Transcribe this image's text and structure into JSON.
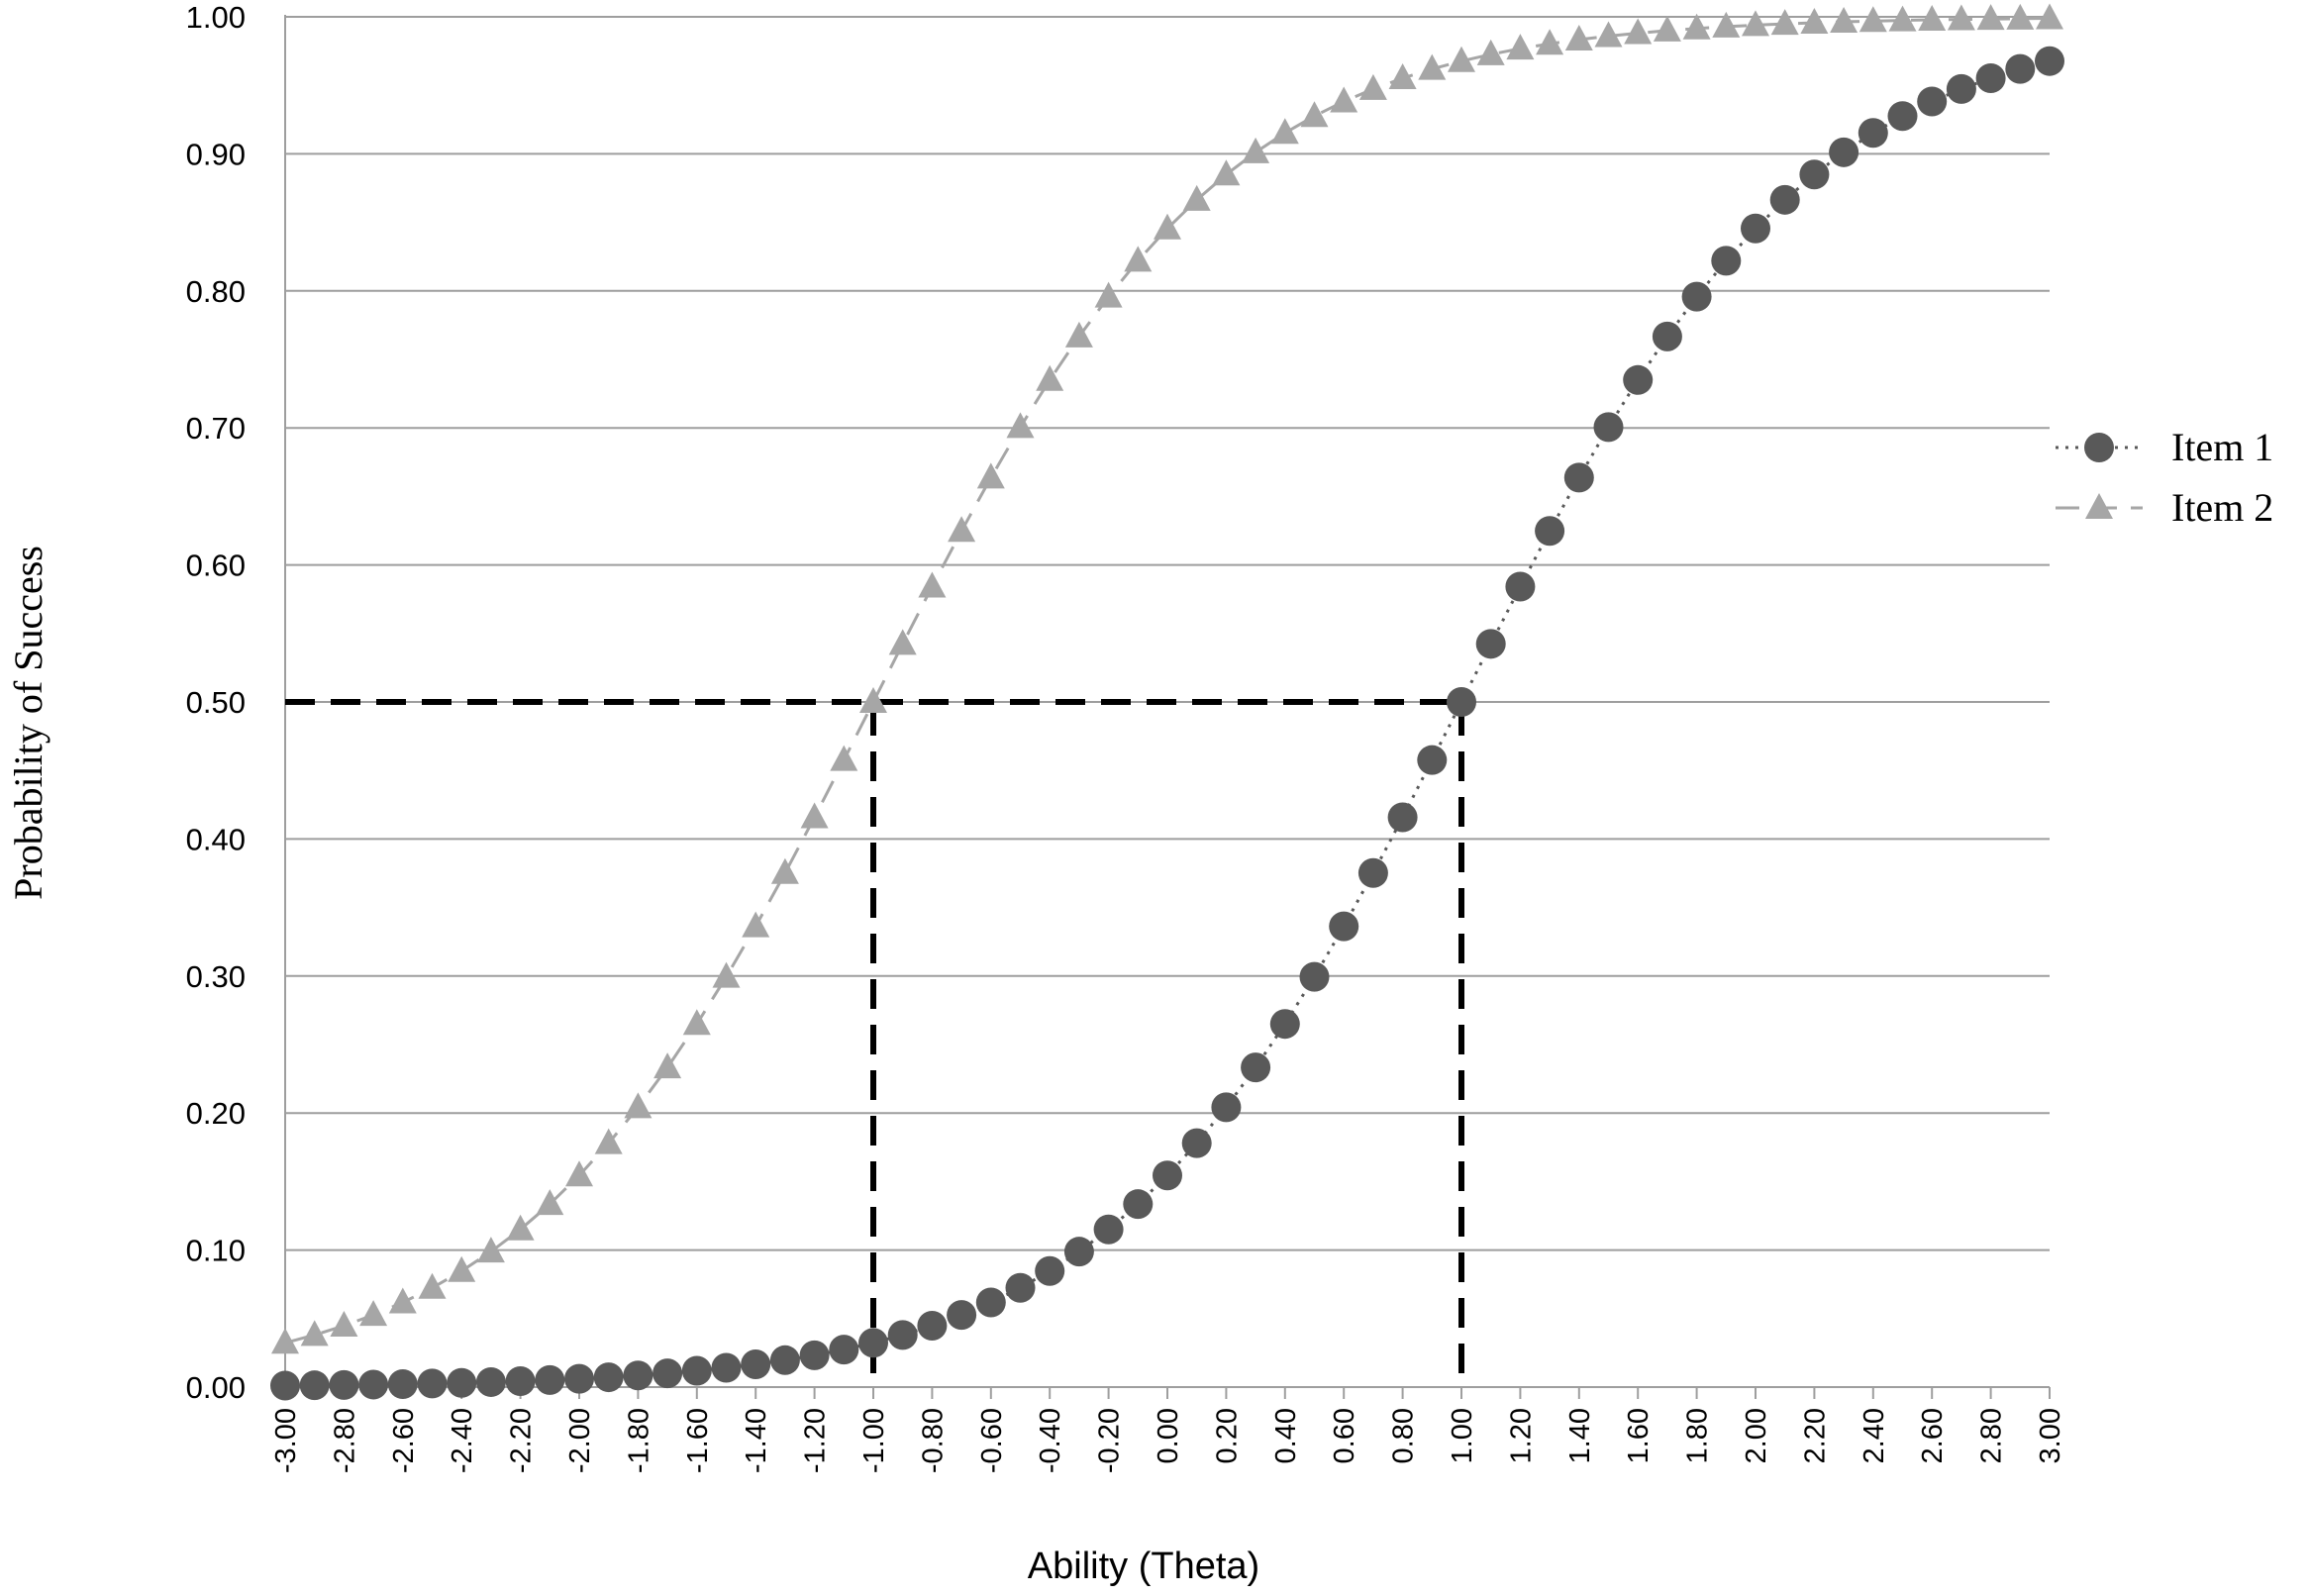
{
  "chart_data": {
    "type": "scatter",
    "title": "",
    "xlabel": "Ability (Theta)",
    "ylabel": "Probability of Success",
    "xlim": [
      -3.0,
      3.0
    ],
    "ylim": [
      0.0,
      1.0
    ],
    "x_tick_step": 0.2,
    "y_tick_step": 0.1,
    "x_tick_format_decimals": 2,
    "y_tick_format_decimals": 2,
    "grid": "horizontal",
    "legend": "right",
    "series": [
      {
        "name": "Item 1",
        "marker": "circle",
        "line": "dotted",
        "color": "#595959",
        "difficulty": 1.0,
        "discrimination": 1.7,
        "x_start": -3.0,
        "x_step": 0.1,
        "count": 61
      },
      {
        "name": "Item 2",
        "marker": "triangle",
        "line": "dashed",
        "color": "#a6a6a6",
        "difficulty": -1.0,
        "discrimination": 1.7,
        "x_start": -3.0,
        "x_step": 0.1,
        "count": 61
      }
    ],
    "reference_lines": [
      {
        "color": "#000000",
        "style": "dashed",
        "points": [
          [
            -3.0,
            0.5
          ],
          [
            -1.0,
            0.5
          ],
          [
            -1.0,
            0.0
          ]
        ]
      },
      {
        "color": "#000000",
        "style": "dashed",
        "points": [
          [
            -1.0,
            0.5
          ],
          [
            1.0,
            0.5
          ],
          [
            1.0,
            0.0
          ]
        ]
      }
    ]
  }
}
